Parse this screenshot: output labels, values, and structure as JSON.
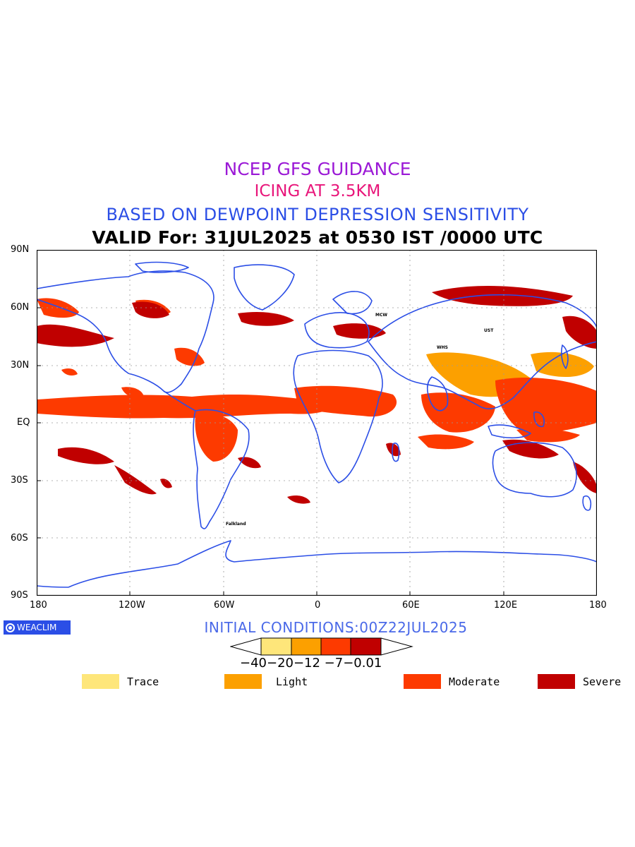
{
  "header": {
    "line1": "NCEP GFS GUIDANCE",
    "line2": "ICING AT 3.5KM",
    "line3": "BASED ON DEWPOINT DEPRESSION SENSITIVITY",
    "line4": "VALID For: 31JUL2025 at 0530 IST /0000 UTC"
  },
  "colors": {
    "line1": "#9b19d6",
    "line2": "#e8157a",
    "line3": "#2b4ee6",
    "line4": "#000000",
    "coastline": "#2b4ee6",
    "trace": "#fee67a",
    "light": "#fca000",
    "moderate": "#fd3a00",
    "severe": "#c00000"
  },
  "axes": {
    "y_ticks": [
      "90N",
      "60N",
      "30N",
      "EQ",
      "30S",
      "60S",
      "90S"
    ],
    "x_ticks": [
      "180",
      "120W",
      "60W",
      "0",
      "60E",
      "120E",
      "180"
    ]
  },
  "brand": {
    "label": "WEACLIM"
  },
  "initial_conditions": "INITIAL CONDITIONS:00Z22JUL2025",
  "colorbar": {
    "labels_text": "−40−20−12 −7−0.01"
  },
  "legend": [
    {
      "label": "Trace",
      "color": "#fee67a"
    },
    {
      "label": "Light",
      "color": "#fca000"
    },
    {
      "label": "Moderate",
      "color": "#fd3a00"
    },
    {
      "label": "Severe",
      "color": "#c00000"
    }
  ],
  "place_labels": [
    "Falkland",
    "MCW",
    "UST",
    "WHS"
  ]
}
